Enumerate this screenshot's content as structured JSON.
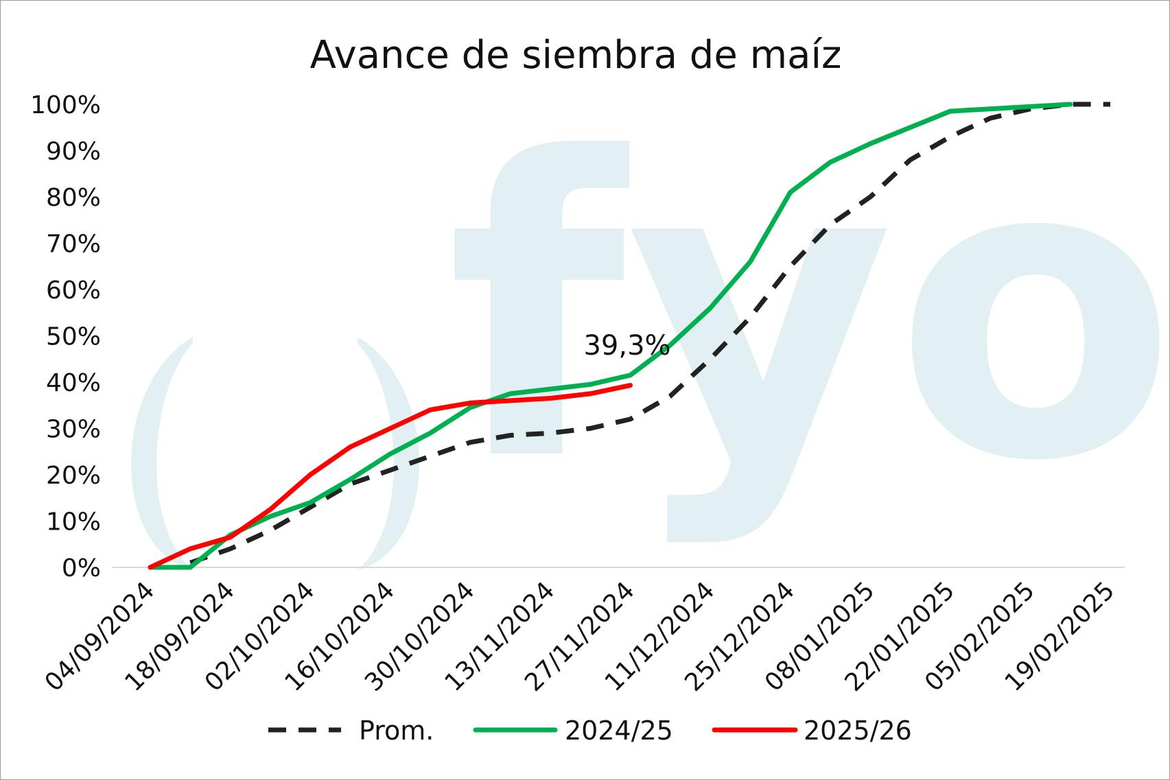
{
  "chart_data": {
    "type": "line",
    "title": "Avance de siembra de maíz",
    "xlabel": "",
    "ylabel": "",
    "x_tick_labels": [
      "04/09/2024",
      "18/09/2024",
      "02/10/2024",
      "16/10/2024",
      "30/10/2024",
      "13/11/2024",
      "27/11/2024",
      "11/12/2024",
      "25/12/2024",
      "08/01/2025",
      "22/01/2025",
      "05/02/2025",
      "19/02/2025"
    ],
    "y_tick_labels": [
      "0%",
      "10%",
      "20%",
      "30%",
      "40%",
      "50%",
      "60%",
      "70%",
      "80%",
      "90%",
      "100%"
    ],
    "ylim": [
      0,
      100
    ],
    "y_unit": "%",
    "x": [
      "04/09/2024",
      "11/09/2024",
      "18/09/2024",
      "25/09/2024",
      "02/10/2024",
      "09/10/2024",
      "16/10/2024",
      "23/10/2024",
      "30/10/2024",
      "06/11/2024",
      "13/11/2024",
      "20/11/2024",
      "27/11/2024",
      "04/12/2024",
      "11/12/2024",
      "18/12/2024",
      "25/12/2024",
      "01/01/2025",
      "08/01/2025",
      "15/01/2025",
      "22/01/2025",
      "29/01/2025",
      "05/02/2025",
      "12/02/2025",
      "19/02/2025"
    ],
    "series": [
      {
        "name": "Prom.",
        "color": "#222222",
        "style": "dashed",
        "values": [
          null,
          1,
          4,
          8,
          13,
          18,
          21,
          24,
          27,
          28.5,
          29,
          30,
          32,
          37,
          45,
          54,
          65,
          74,
          80,
          88,
          93,
          97,
          99,
          100,
          100
        ]
      },
      {
        "name": "2024/25",
        "color": "#00b050",
        "style": "solid",
        "values": [
          0,
          0,
          7,
          11,
          14,
          19,
          24.5,
          29,
          34.5,
          37.5,
          38.5,
          39.5,
          41.5,
          48,
          56,
          66,
          81,
          87.5,
          91.5,
          95,
          98.5,
          99,
          99.5,
          100,
          null
        ]
      },
      {
        "name": "2025/26",
        "color": "#ff0000",
        "style": "solid",
        "values": [
          0,
          4,
          6.5,
          12.5,
          20,
          26,
          30,
          34,
          35.5,
          36,
          36.5,
          37.5,
          39.3,
          null,
          null,
          null,
          null,
          null,
          null,
          null,
          null,
          null,
          null,
          null,
          null
        ]
      }
    ],
    "annotations": [
      {
        "text": "39,3%",
        "series": "2025/26",
        "x": "27/11/2024",
        "y": 39.3
      }
    ],
    "legend_position": "bottom",
    "grid": false,
    "watermark": "fyo"
  }
}
